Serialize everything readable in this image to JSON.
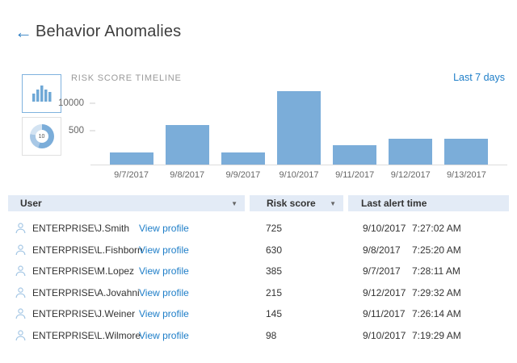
{
  "header": {
    "back_label": "←",
    "title": "Behavior Anomalies"
  },
  "chart_panel": {
    "title": "RISK SCORE TIMELINE",
    "range_label": "Last 7 days",
    "view_toggles": [
      {
        "name": "bar-chart-view",
        "selected": true
      },
      {
        "name": "donut-chart-view",
        "selected": false,
        "badge": "10"
      }
    ]
  },
  "chart_data": {
    "type": "bar",
    "title": "RISK SCORE TIMELINE",
    "xlabel": "",
    "ylabel": "",
    "categories": [
      "9/7/2017",
      "9/8/2017",
      "9/9/2017",
      "9/10/2017",
      "9/11/2017",
      "9/12/2017",
      "9/13/2017"
    ],
    "values": [
      50,
      1000,
      50,
      36000,
      110,
      210,
      210
    ],
    "bar_height_pct": [
      15.5,
      51.5,
      15.5,
      94.8,
      24.7,
      33,
      33
    ],
    "yticks": [
      {
        "label": "10000",
        "top_pct": 20.6
      },
      {
        "label": "500",
        "top_pct": 56.7
      }
    ],
    "yscale": "nonlinear (approx log), values estimated from tick positions",
    "grid": false,
    "legend": "none",
    "bar_color": "#7badd9"
  },
  "table": {
    "columns": [
      {
        "label": "User",
        "sortable": true
      },
      {
        "label": "Risk score",
        "sortable": true
      },
      {
        "label": "Last alert time",
        "sortable": false
      }
    ],
    "action_label": "View profile",
    "rows": [
      {
        "user": "ENTERPRISE\\J.Smith",
        "risk_score": "725",
        "date": "9/10/2017",
        "time": "7:27:02 AM"
      },
      {
        "user": "ENTERPRISE\\L.Fishborn",
        "risk_score": "630",
        "date": "9/8/2017",
        "time": "7:25:20 AM"
      },
      {
        "user": "ENTERPRISE\\M.Lopez",
        "risk_score": "385",
        "date": "9/7/2017",
        "time": "7:28:11 AM"
      },
      {
        "user": "ENTERPRISE\\A.Jovahni",
        "risk_score": "215",
        "date": "9/12/2017",
        "time": "7:29:32 AM"
      },
      {
        "user": "ENTERPRISE\\J.Weiner",
        "risk_score": "145",
        "date": "9/11/2017",
        "time": "7:26:14 AM"
      },
      {
        "user": "ENTERPRISE\\L.Wilmore",
        "risk_score": "98",
        "date": "9/10/2017",
        "time": "7:19:29 AM"
      }
    ]
  },
  "colors": {
    "accent_blue": "#1e7ec8",
    "bar_blue": "#7badd9",
    "table_header_bg": "#e3ebf6",
    "text_dark": "#333333",
    "text_muted": "#9a9a9a",
    "icon_blue": "#a5c7e5"
  }
}
